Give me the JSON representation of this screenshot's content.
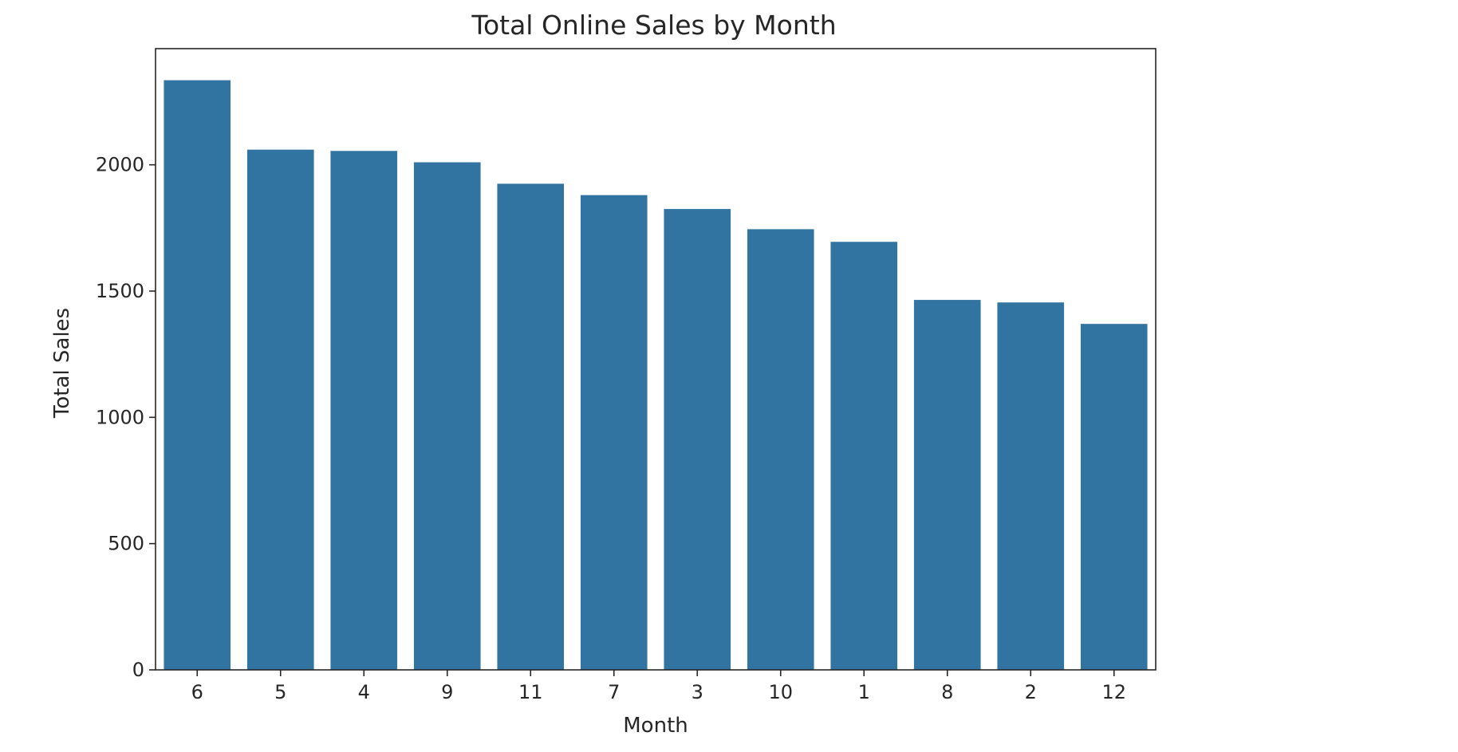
{
  "chart_data": {
    "type": "bar",
    "title": "Total Online Sales by Month",
    "xlabel": "Month",
    "ylabel": "Total Sales",
    "categories": [
      "6",
      "5",
      "4",
      "9",
      "11",
      "7",
      "3",
      "10",
      "1",
      "8",
      "2",
      "12"
    ],
    "values": [
      2335,
      2060,
      2055,
      2010,
      1925,
      1880,
      1825,
      1745,
      1695,
      1465,
      1455,
      1370
    ],
    "ylim": [
      0,
      2460
    ],
    "yticks": [
      0,
      500,
      1000,
      1500,
      2000
    ],
    "grid": false,
    "bar_color": "#3274a1"
  }
}
